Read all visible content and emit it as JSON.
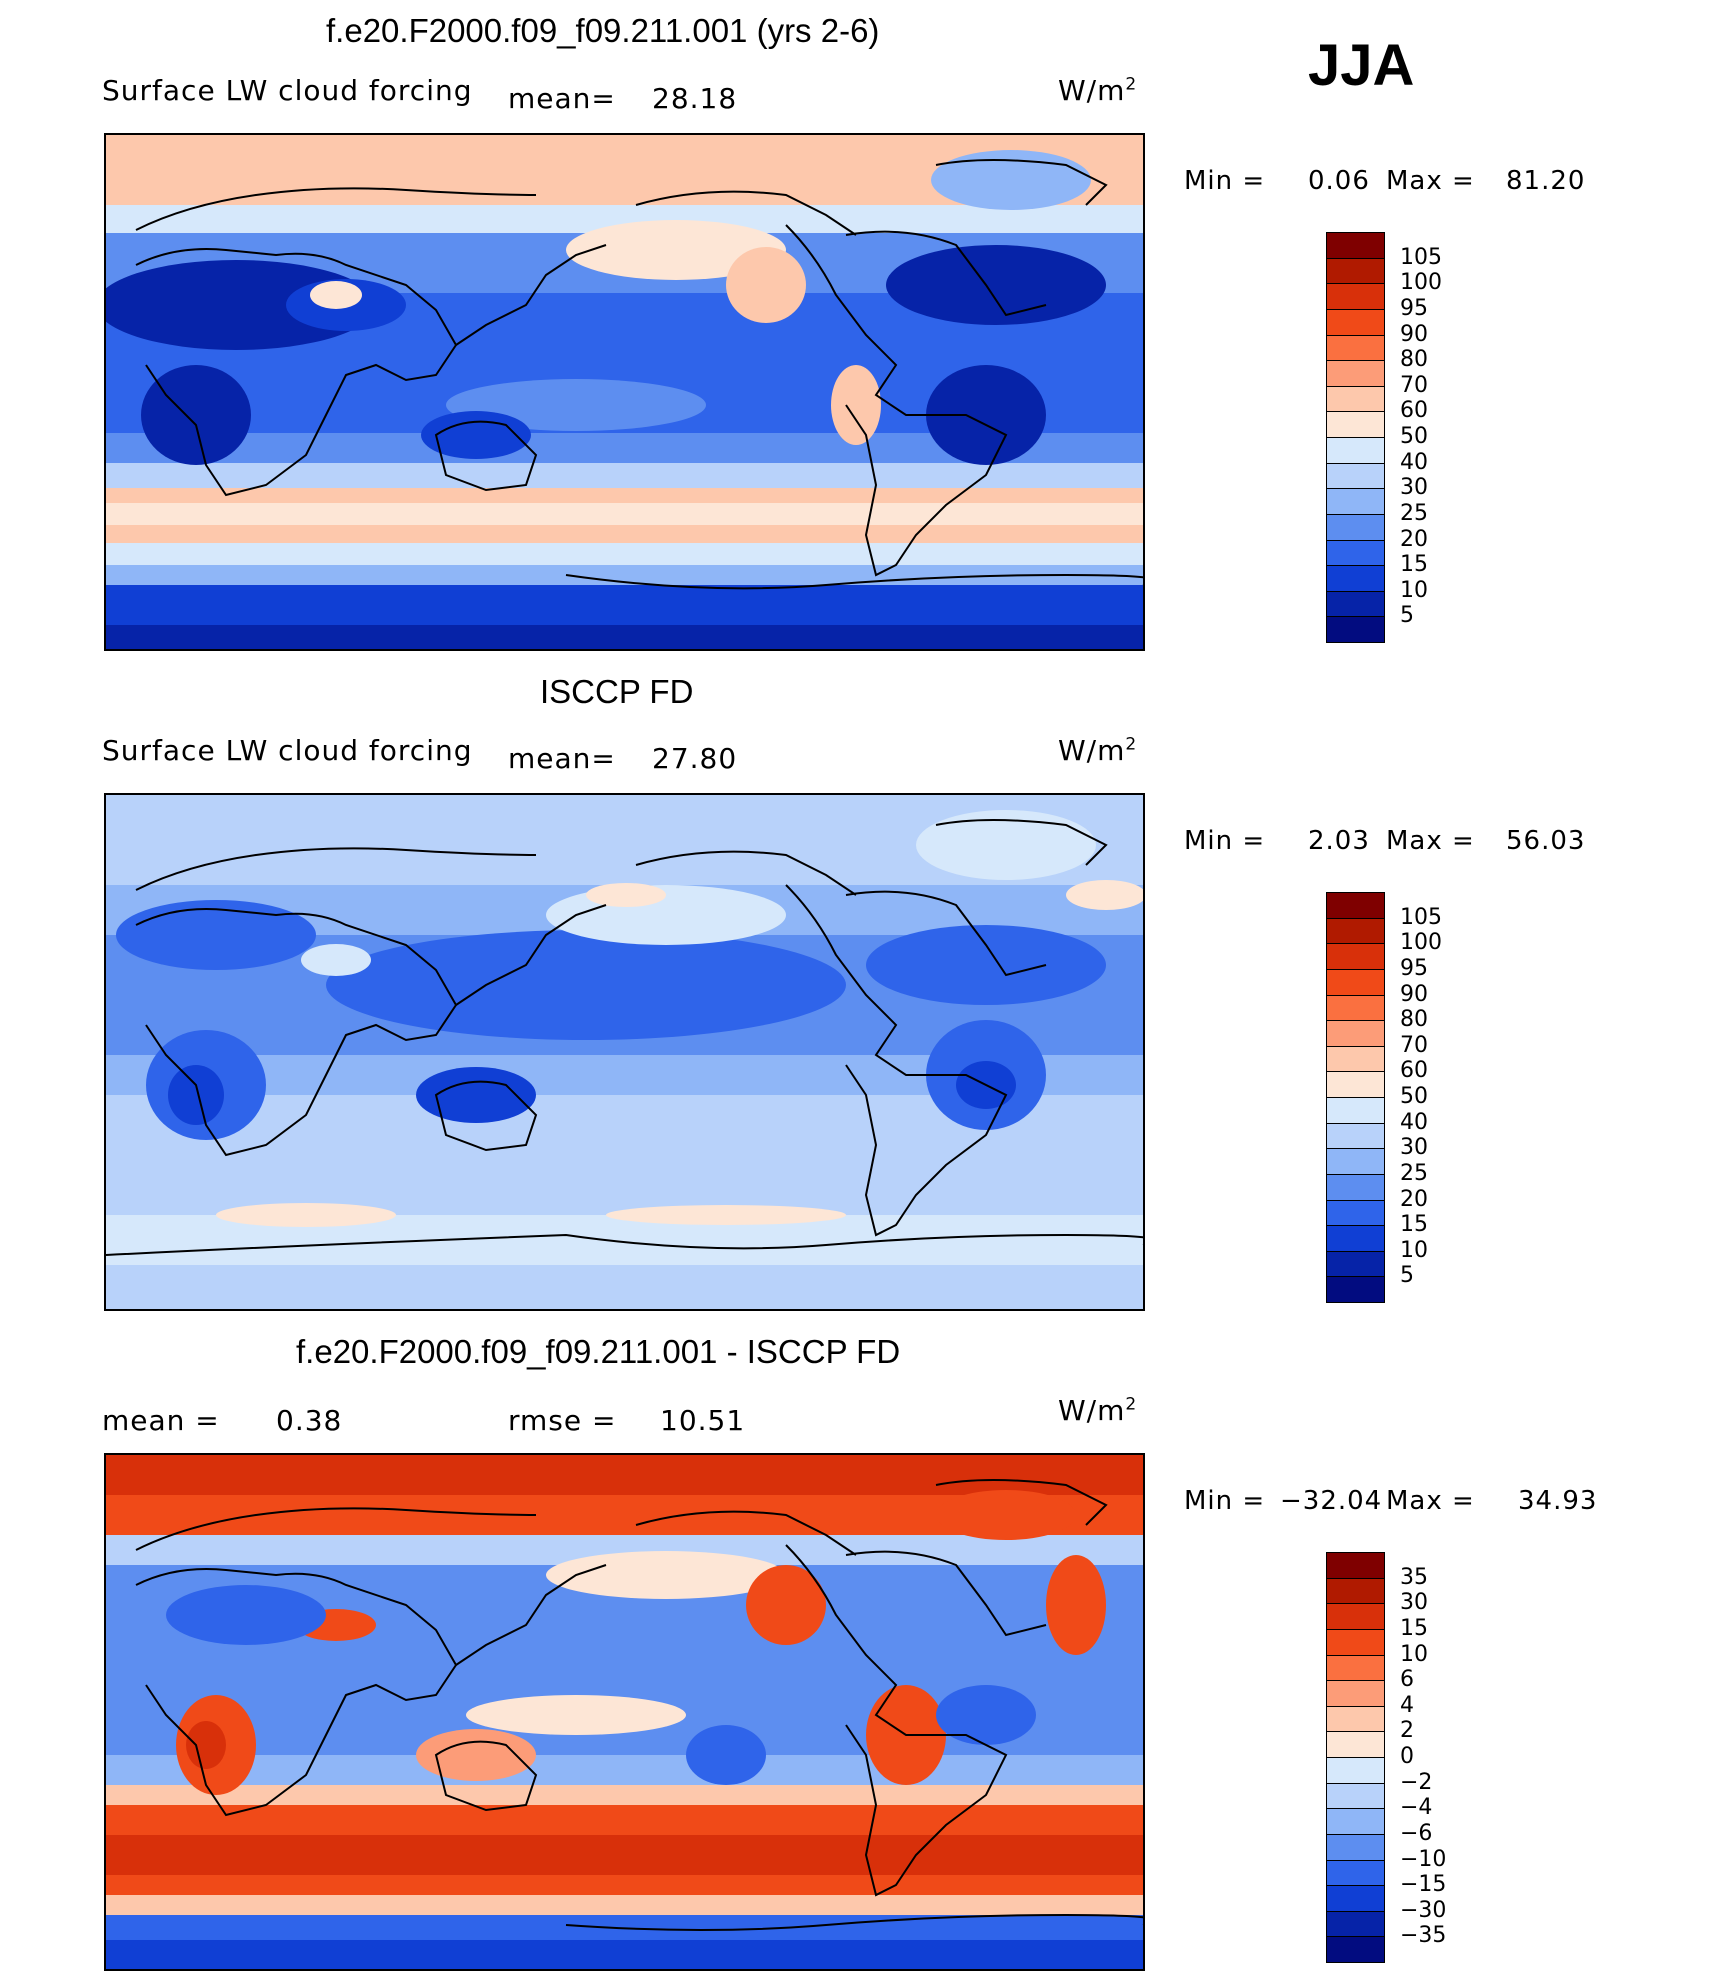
{
  "season": "JJA",
  "panels": [
    {
      "id": "model",
      "title": "f.e20.F2000.f09_f09.211.001 (yrs 2-6)",
      "left_label": "Surface LW cloud forcing",
      "mean_label": "mean=",
      "mean_value": "28.18",
      "units_base": "W/m",
      "units_exp": "2",
      "min_label": "Min  =",
      "min_value": "0.06",
      "max_label": "Max  =",
      "max_value": "81.20"
    },
    {
      "id": "obs",
      "title": "ISCCP FD",
      "left_label": "Surface LW cloud forcing",
      "mean_label": "mean=",
      "mean_value": "27.80",
      "units_base": "W/m",
      "units_exp": "2",
      "min_label": "Min  =",
      "min_value": "2.03",
      "max_label": "Max  =",
      "max_value": "56.03"
    },
    {
      "id": "diff",
      "title": "f.e20.F2000.f09_f09.211.001 - ISCCP FD",
      "mean_label": "mean  =",
      "mean_value": "0.38",
      "rmse_label": "rmse  =",
      "rmse_value": "10.51",
      "units_base": "W/m",
      "units_exp": "2",
      "min_label": "Min  =",
      "min_value": "−32.04",
      "max_label": "Max  =",
      "max_value": "34.93"
    }
  ],
  "colorbars": {
    "field": {
      "levels": [
        "105",
        "100",
        "95",
        "90",
        "80",
        "70",
        "60",
        "50",
        "40",
        "30",
        "25",
        "20",
        "15",
        "10",
        "5"
      ],
      "colors": [
        "#7f0000",
        "#b01a00",
        "#d8300a",
        "#f04a18",
        "#fa7040",
        "#fc9c78",
        "#fdc8ac",
        "#fde6d6",
        "#d6e8fb",
        "#b8d2fa",
        "#8fb6f7",
        "#5d8ef0",
        "#2f64ea",
        "#103fd4",
        "#0623a8",
        "#020c80"
      ]
    },
    "diff": {
      "levels": [
        "35",
        "30",
        "15",
        "10",
        "6",
        "4",
        "2",
        "0",
        "−2",
        "−4",
        "−6",
        "−10",
        "−15",
        "−30",
        "−35"
      ],
      "colors": [
        "#7f0000",
        "#b01a00",
        "#d8300a",
        "#f04a18",
        "#fa7040",
        "#fc9c78",
        "#fdc8ac",
        "#fde6d6",
        "#d6e8fb",
        "#b8d2fa",
        "#8fb6f7",
        "#5d8ef0",
        "#2f64ea",
        "#103fd4",
        "#0623a8",
        "#020c80"
      ]
    }
  }
}
